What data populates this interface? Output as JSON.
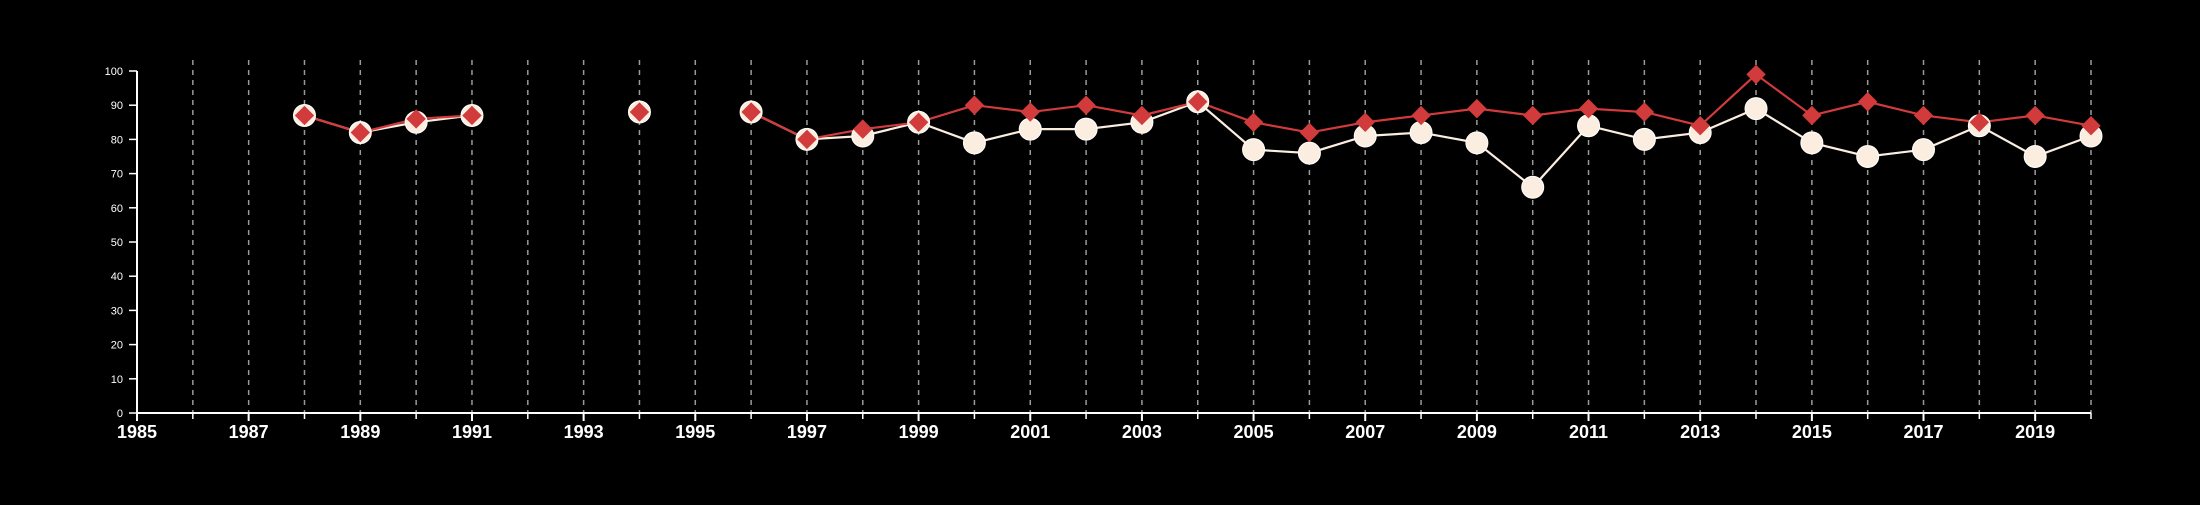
{
  "chart_data": {
    "type": "line",
    "title": "",
    "xlabel": "",
    "ylabel": "",
    "xlim": [
      1985,
      2020
    ],
    "ylim": [
      0,
      100
    ],
    "x_ticks": [
      "1985",
      "1987",
      "1989",
      "1991",
      "1993",
      "1995",
      "1997",
      "1999",
      "2001",
      "2003",
      "2005",
      "2007",
      "2009",
      "2011",
      "2013",
      "2015",
      "2017",
      "2019"
    ],
    "y_ticks": [
      "0",
      "10",
      "20",
      "30",
      "40",
      "50",
      "60",
      "70",
      "80",
      "90",
      "100"
    ],
    "grid": "vertical dashed lines at each year",
    "legend": "none",
    "x": [
      1988,
      1989,
      1990,
      1991,
      1992,
      1993,
      1994,
      1995,
      1996,
      1997,
      1998,
      1999,
      2000,
      2001,
      2002,
      2003,
      2004,
      2005,
      2006,
      2007,
      2008,
      2009,
      2010,
      2011,
      2012,
      2013,
      2014,
      2015,
      2016,
      2017,
      2018,
      2019,
      2020
    ],
    "series": [
      {
        "marker": "diamond",
        "color": "#d13b3b",
        "values": [
          87,
          82,
          86,
          87,
          null,
          null,
          88,
          null,
          88,
          80,
          83,
          85,
          90,
          88,
          90,
          87,
          91,
          85,
          82,
          85,
          87,
          89,
          87,
          89,
          88,
          84,
          99,
          87,
          91,
          87,
          85,
          87,
          84
        ]
      },
      {
        "marker": "circle",
        "color": "#fbeee0",
        "values": [
          87,
          82,
          85,
          87,
          null,
          null,
          88,
          null,
          88,
          80,
          81,
          85,
          79,
          83,
          83,
          85,
          91,
          77,
          76,
          81,
          82,
          79,
          66,
          84,
          80,
          82,
          89,
          79,
          75,
          77,
          84,
          75,
          81
        ]
      }
    ]
  }
}
